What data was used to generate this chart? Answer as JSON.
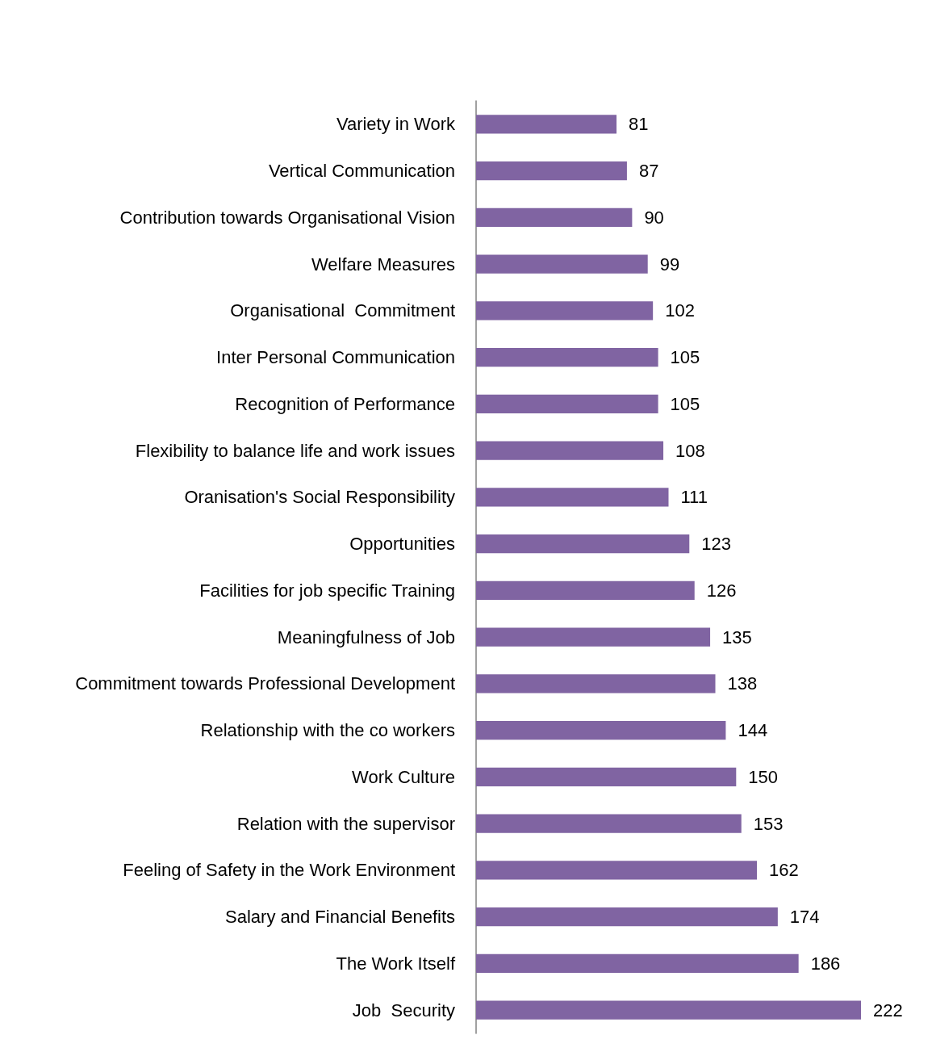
{
  "chart_data": {
    "type": "bar",
    "orientation": "horizontal",
    "data_labels": true,
    "categories": [
      "Variety in Work",
      "Vertical Communication",
      "Contribution towards Organisational Vision",
      "Welfare Measures",
      "Organisational  Commitment",
      "Inter Personal Communication",
      "Recognition of Performance",
      "Flexibility to balance life and work issues",
      "Oranisation's Social Responsibility",
      "Opportunities",
      "Facilities for job specific Training",
      "Meaningfulness of Job",
      "Commitment towards Professional Development",
      "Relationship with the co workers",
      "Work Culture",
      "Relation with the supervisor",
      "Feeling of Safety in the Work Environment",
      "Salary and Financial Benefits",
      "The Work Itself",
      "Job  Security"
    ],
    "values": [
      81,
      87,
      90,
      99,
      102,
      105,
      105,
      108,
      111,
      123,
      126,
      135,
      138,
      144,
      150,
      153,
      162,
      174,
      186,
      222
    ],
    "color": "#8064a2"
  }
}
